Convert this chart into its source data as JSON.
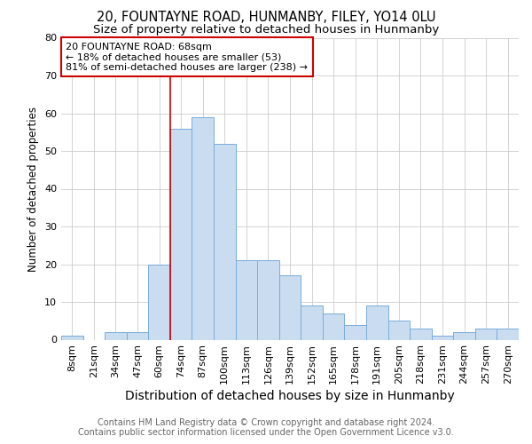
{
  "title1": "20, FOUNTAYNE ROAD, HUNMANBY, FILEY, YO14 0LU",
  "title2": "Size of property relative to detached houses in Hunmanby",
  "xlabel": "Distribution of detached houses by size in Hunmanby",
  "ylabel": "Number of detached properties",
  "categories": [
    "8sqm",
    "21sqm",
    "34sqm",
    "47sqm",
    "60sqm",
    "74sqm",
    "87sqm",
    "100sqm",
    "113sqm",
    "126sqm",
    "139sqm",
    "152sqm",
    "165sqm",
    "178sqm",
    "191sqm",
    "205sqm",
    "218sqm",
    "231sqm",
    "244sqm",
    "257sqm",
    "270sqm"
  ],
  "values": [
    1,
    0,
    2,
    2,
    20,
    56,
    59,
    52,
    21,
    21,
    17,
    9,
    7,
    4,
    9,
    5,
    3,
    1,
    2,
    3,
    3
  ],
  "bar_color": "#c9dcf0",
  "bar_edge_color": "#7aadda",
  "vline_color": "#cc0000",
  "annotation_text": "20 FOUNTAYNE ROAD: 68sqm\n← 18% of detached houses are smaller (53)\n81% of semi-detached houses are larger (238) →",
  "annotation_box_color": "#ffffff",
  "annotation_box_edge": "#cc0000",
  "footer1": "Contains HM Land Registry data © Crown copyright and database right 2024.",
  "footer2": "Contains public sector information licensed under the Open Government Licence v3.0.",
  "ylim": [
    0,
    80
  ],
  "title1_fontsize": 10.5,
  "title2_fontsize": 9.5,
  "xlabel_fontsize": 10,
  "ylabel_fontsize": 8.5,
  "annotation_fontsize": 8,
  "tick_fontsize": 8,
  "footer_fontsize": 7,
  "background_color": "#ffffff",
  "grid_color": "#cccccc"
}
